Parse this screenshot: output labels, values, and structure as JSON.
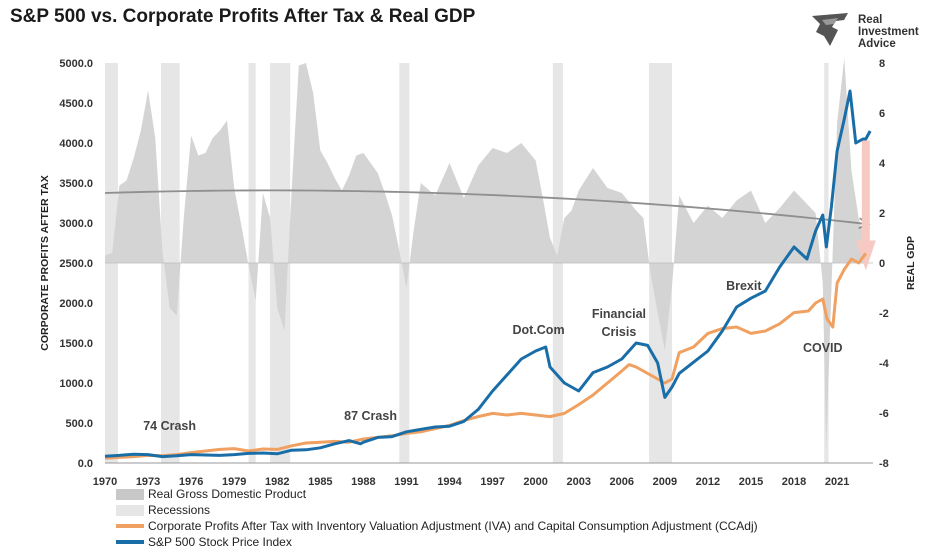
{
  "title": "S&P 500 vs. Corporate Profits After Tax & Real GDP",
  "brand": {
    "line1": "Real",
    "line2": "Investment",
    "line3": "Advice"
  },
  "colors": {
    "gdp": "#d4d4d4",
    "recession": "#e6e6e6",
    "profits": "#f0a060",
    "sp500": "#1a6ea8",
    "trend": "#8f8f8f",
    "arrow": "#f6c9c2"
  },
  "chart_data": {
    "type": "line",
    "xlabel": "",
    "ylabel": "CORPORATE PROFITS AFTER TAX",
    "y2label": "REAL GDP",
    "xlim": [
      1970,
      2023.5
    ],
    "ylim": [
      0,
      5000
    ],
    "y2lim": [
      -8,
      8
    ],
    "x_ticks": [
      "1970",
      "1973",
      "1976",
      "1979",
      "1982",
      "1985",
      "1988",
      "1991",
      "1994",
      "1997",
      "2000",
      "2003",
      "2006",
      "2009",
      "2012",
      "2015",
      "2018",
      "2021"
    ],
    "y_ticks": [
      "0.0",
      "500.0",
      "1000.0",
      "1500.0",
      "2000.0",
      "2500.0",
      "3000.0",
      "3500.0",
      "4000.0",
      "4500.0",
      "5000.0"
    ],
    "y2_ticks": [
      "-8",
      "-6",
      "-4",
      "-2",
      "0",
      "2",
      "4",
      "6",
      "8"
    ],
    "recessions": [
      [
        1970.0,
        1970.9
      ],
      [
        1973.9,
        1975.2
      ],
      [
        1980.0,
        1980.5
      ],
      [
        1981.5,
        1982.9
      ],
      [
        1990.5,
        1991.2
      ],
      [
        2001.2,
        2001.9
      ],
      [
        2007.9,
        2009.5
      ],
      [
        2020.1,
        2020.4
      ]
    ],
    "series": [
      {
        "name": "Real Gross Domestic Product",
        "type": "area",
        "axis": "right",
        "x": [
          1970,
          1970.5,
          1971,
          1971.5,
          1972,
          1972.5,
          1973,
          1973.5,
          1974,
          1974.5,
          1975,
          1975.5,
          1976,
          1976.5,
          1977,
          1977.5,
          1978,
          1978.5,
          1979,
          1979.5,
          1980,
          1980.5,
          1981,
          1981.5,
          1982,
          1982.5,
          1983,
          1983.5,
          1984,
          1984.5,
          1985,
          1985.5,
          1986,
          1986.5,
          1987,
          1987.5,
          1988,
          1988.5,
          1989,
          1989.5,
          1990,
          1990.5,
          1991,
          1991.5,
          1992,
          1993,
          1994,
          1995,
          1996,
          1997,
          1998,
          1999,
          2000,
          2000.5,
          2001,
          2001.5,
          2002,
          2002.5,
          2003,
          2004,
          2005,
          2006,
          2007,
          2007.5,
          2008,
          2008.5,
          2009,
          2009.5,
          2010,
          2011,
          2012,
          2013,
          2014,
          2015,
          2016,
          2017,
          2018,
          2019,
          2019.5,
          2020,
          2020.25,
          2020.5,
          2021,
          2021.5,
          2022,
          2022.5,
          2023
        ],
        "values": [
          0.3,
          0.4,
          3.1,
          3.3,
          4.2,
          5.3,
          6.9,
          5.0,
          0.5,
          -1.8,
          -2.1,
          1.9,
          5.1,
          4.3,
          4.4,
          5.0,
          5.3,
          5.7,
          3.0,
          1.5,
          -0.1,
          -1.5,
          2.8,
          1.8,
          -1.8,
          -2.7,
          2.9,
          7.9,
          8.0,
          6.8,
          4.5,
          4.0,
          3.4,
          2.9,
          3.5,
          4.3,
          4.4,
          4.0,
          3.6,
          2.8,
          1.9,
          0.5,
          -1.0,
          1.3,
          3.2,
          2.7,
          4.0,
          2.6,
          3.9,
          4.6,
          4.4,
          4.8,
          4.1,
          2.6,
          1.0,
          0.3,
          1.8,
          2.1,
          2.9,
          3.8,
          3.0,
          2.8,
          2.1,
          1.8,
          -0.4,
          -2.0,
          -3.5,
          -0.9,
          2.7,
          1.6,
          2.3,
          1.8,
          2.5,
          2.9,
          1.6,
          2.2,
          2.9,
          2.3,
          2.0,
          -0.8,
          -7.5,
          -2.8,
          5.6,
          8.2,
          3.7,
          1.8,
          0.7
        ]
      },
      {
        "name": "Recessions",
        "type": "band"
      },
      {
        "name": "Corporate Profits After Tax with Inventory Valuation Adjustment (IVA) and Capital Consumption Adjustment (CCAdj)",
        "type": "line",
        "axis": "left",
        "x": [
          1970,
          1971,
          1972,
          1973,
          1974,
          1975,
          1976,
          1977,
          1978,
          1979,
          1980,
          1981,
          1982,
          1983,
          1984,
          1985,
          1986,
          1987,
          1988,
          1989,
          1990,
          1991,
          1992,
          1993,
          1994,
          1995,
          1996,
          1997,
          1998,
          1999,
          2000,
          2001,
          2002,
          2003,
          2004,
          2005,
          2006,
          2006.5,
          2007,
          2008,
          2008.5,
          2009,
          2009.5,
          2010,
          2011,
          2012,
          2013,
          2014,
          2015,
          2016,
          2017,
          2018,
          2019,
          2019.5,
          2020,
          2020.3,
          2020.7,
          2021,
          2021.5,
          2022,
          2022.5,
          2023
        ],
        "values": [
          60,
          70,
          80,
          95,
          90,
          105,
          130,
          150,
          170,
          180,
          150,
          175,
          170,
          215,
          250,
          260,
          270,
          260,
          300,
          320,
          340,
          370,
          390,
          430,
          470,
          530,
          580,
          620,
          600,
          620,
          600,
          580,
          620,
          730,
          850,
          1000,
          1150,
          1230,
          1200,
          1100,
          1050,
          1000,
          1050,
          1380,
          1450,
          1620,
          1680,
          1700,
          1620,
          1650,
          1740,
          1880,
          1900,
          2000,
          2050,
          1800,
          1700,
          2250,
          2420,
          2550,
          2500,
          2620
        ]
      },
      {
        "name": "S&P 500 Stock Price Index",
        "type": "line",
        "axis": "left",
        "x": [
          1970,
          1971,
          1972,
          1973,
          1974,
          1975,
          1976,
          1977,
          1978,
          1979,
          1980,
          1981,
          1982,
          1983,
          1984,
          1985,
          1986,
          1987,
          1987.8,
          1988,
          1989,
          1990,
          1991,
          1992,
          1993,
          1994,
          1995,
          1996,
          1997,
          1998,
          1999,
          2000,
          2000.7,
          2001,
          2002,
          2003,
          2004,
          2005,
          2006,
          2007,
          2007.8,
          2008.5,
          2009,
          2009.5,
          2010,
          2011,
          2012,
          2013,
          2014,
          2015,
          2016,
          2017,
          2018,
          2018.9,
          2019.5,
          2020,
          2020.25,
          2020.6,
          2021,
          2021.5,
          2021.9,
          2022.3,
          2022.8,
          2023,
          2023.3
        ],
        "values": [
          85,
          95,
          110,
          105,
          80,
          90,
          105,
          100,
          95,
          105,
          120,
          125,
          115,
          160,
          165,
          190,
          240,
          280,
          240,
          260,
          320,
          330,
          390,
          420,
          450,
          460,
          520,
          670,
          900,
          1100,
          1300,
          1400,
          1450,
          1200,
          1000,
          900,
          1130,
          1200,
          1300,
          1500,
          1470,
          1250,
          820,
          950,
          1120,
          1260,
          1400,
          1650,
          1950,
          2060,
          2150,
          2450,
          2700,
          2550,
          2900,
          3100,
          2700,
          3200,
          3900,
          4300,
          4650,
          4000,
          4050,
          4050,
          4150
        ]
      }
    ],
    "annotations": [
      "74 Crash",
      "87 Crash",
      "Dot.Com",
      "Financial",
      "Crisis",
      "Brexit",
      "COVID"
    ]
  }
}
